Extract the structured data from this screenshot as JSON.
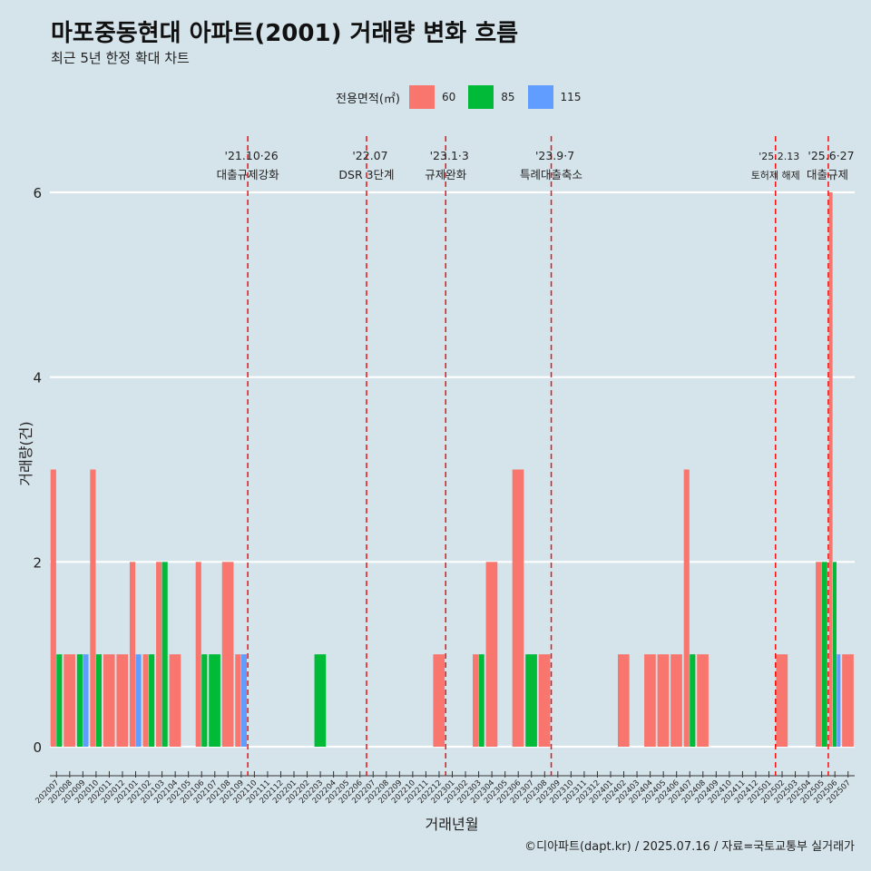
{
  "header": {
    "title": "마포중동현대 아파트(2001) 거래량 변화 흐름",
    "subtitle": "최근 5년 한정 확대 차트"
  },
  "legend": {
    "title": "전용면적(㎡)",
    "items": [
      {
        "label": "60",
        "color": "#f8766d"
      },
      {
        "label": "85",
        "color": "#00ba38"
      },
      {
        "label": "115",
        "color": "#619cff"
      }
    ]
  },
  "caption": "©디아파트(dapt.kr) / 2025.07.16 / 자료=국토교통부 실거래가",
  "chart_data": {
    "type": "bar",
    "xlabel": "거래년월",
    "ylabel": "거래량(건)",
    "ylim": [
      0,
      6.3
    ],
    "y_ticks": [
      "0",
      "2",
      "4",
      "6"
    ],
    "grid": "horizontal",
    "legend_position": "top",
    "categories": [
      "202007",
      "202008",
      "202009",
      "202010",
      "202011",
      "202012",
      "202101",
      "202102",
      "202103",
      "202104",
      "202105",
      "202106",
      "202107",
      "202108",
      "202109",
      "202110",
      "202111",
      "202112",
      "202201",
      "202202",
      "202203",
      "202204",
      "202205",
      "202206",
      "202207",
      "202208",
      "202209",
      "202210",
      "202211",
      "202212",
      "202301",
      "202302",
      "202303",
      "202304",
      "202305",
      "202306",
      "202307",
      "202308",
      "202309",
      "202310",
      "202311",
      "202312",
      "202401",
      "202402",
      "202403",
      "202404",
      "202405",
      "202406",
      "202407",
      "202408",
      "202409",
      "202410",
      "202411",
      "202412",
      "202501",
      "202502",
      "202503",
      "202504",
      "202505",
      "202506",
      "202507"
    ],
    "series": [
      {
        "name": "60",
        "color": "#f8766d",
        "values": [
          3,
          1,
          0,
          3,
          1,
          1,
          2,
          1,
          2,
          1,
          0,
          2,
          0,
          2,
          1,
          0,
          0,
          0,
          0,
          0,
          0,
          0,
          0,
          0,
          0,
          0,
          0,
          0,
          0,
          1,
          0,
          0,
          1,
          2,
          0,
          3,
          0,
          1,
          0,
          0,
          0,
          0,
          0,
          1,
          0,
          1,
          1,
          1,
          3,
          1,
          0,
          0,
          0,
          0,
          0,
          1,
          0,
          0,
          2,
          6,
          1
        ]
      },
      {
        "name": "85",
        "color": "#00ba38",
        "values": [
          1,
          0,
          1,
          1,
          0,
          0,
          0,
          1,
          2,
          0,
          0,
          1,
          1,
          0,
          0,
          0,
          0,
          0,
          0,
          0,
          1,
          0,
          0,
          0,
          0,
          0,
          0,
          0,
          0,
          0,
          0,
          0,
          1,
          0,
          0,
          0,
          1,
          0,
          0,
          0,
          0,
          0,
          0,
          0,
          0,
          0,
          0,
          0,
          1,
          0,
          0,
          0,
          0,
          0,
          0,
          0,
          0,
          0,
          2,
          2,
          0
        ]
      },
      {
        "name": "115",
        "color": "#619cff",
        "values": [
          0,
          0,
          1,
          0,
          0,
          0,
          1,
          0,
          0,
          0,
          0,
          0,
          0,
          0,
          1,
          0,
          0,
          0,
          0,
          0,
          0,
          0,
          0,
          0,
          0,
          0,
          0,
          0,
          0,
          0,
          0,
          0,
          0,
          0,
          0,
          0,
          0,
          0,
          0,
          0,
          0,
          0,
          0,
          0,
          0,
          0,
          0,
          0,
          0,
          0,
          0,
          0,
          0,
          0,
          0,
          0,
          0,
          0,
          0,
          1,
          0
        ]
      }
    ],
    "annotations": [
      {
        "x": "202110",
        "date": "'21.10·26",
        "text": "대출규제강화"
      },
      {
        "x": "202207",
        "date": "'22.07",
        "text": "DSR 3단계"
      },
      {
        "x": "202301",
        "date": "'23.1·3",
        "text": "규제완화"
      },
      {
        "x": "202309",
        "date": "'23.9·7",
        "text": "특례대출축소"
      },
      {
        "x": "202502",
        "date": "'25.2.13",
        "text": "토허제 해제"
      },
      {
        "x": "202506",
        "date": "'25.6·27",
        "text": "대출규제"
      }
    ]
  }
}
